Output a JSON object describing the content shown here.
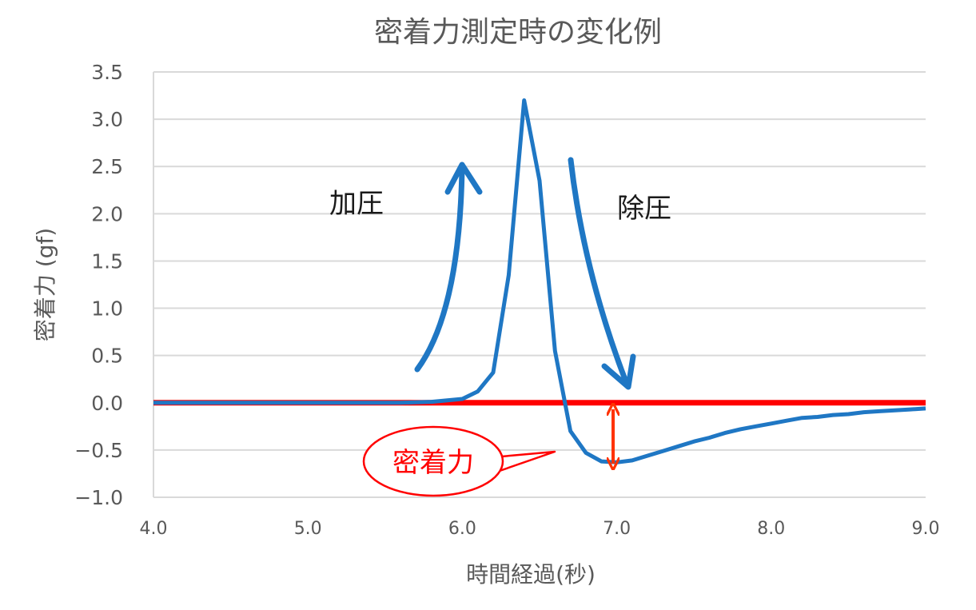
{
  "chart_data": {
    "type": "line",
    "title": "密着力測定時の変化例",
    "xlabel": "時間経過(秒)",
    "ylabel": "密着力 (gf)",
    "xlim": [
      4.0,
      9.0
    ],
    "ylim": [
      -1.0,
      3.5
    ],
    "x_ticks": [
      "4.0",
      "5.0",
      "6.0",
      "7.0",
      "8.0",
      "9.0"
    ],
    "y_ticks": [
      "3.5",
      "3.0",
      "2.5",
      "2.0",
      "1.5",
      "1.0",
      "0.5",
      "0.0",
      "−0.5",
      "−1.0"
    ],
    "grid": "horizontal",
    "series": [
      {
        "color": "#1f77c4",
        "x": [
          4.0,
          4.2,
          4.4,
          4.6,
          4.8,
          5.0,
          5.2,
          5.4,
          5.6,
          5.8,
          6.0,
          6.1,
          6.2,
          6.3,
          6.4,
          6.5,
          6.6,
          6.7,
          6.8,
          6.9,
          7.0,
          7.1,
          7.2,
          7.3,
          7.4,
          7.5,
          7.6,
          7.7,
          7.8,
          7.9,
          8.0,
          8.1,
          8.2,
          8.3,
          8.4,
          8.5,
          8.6,
          8.7,
          8.8,
          8.9,
          9.0
        ],
        "y": [
          0.0,
          0.0,
          0.0,
          0.0,
          0.0,
          0.0,
          0.0,
          0.0,
          0.0,
          0.01,
          0.04,
          0.12,
          0.32,
          1.35,
          3.2,
          2.35,
          0.55,
          -0.3,
          -0.53,
          -0.62,
          -0.63,
          -0.61,
          -0.56,
          -0.51,
          -0.46,
          -0.41,
          -0.37,
          -0.32,
          -0.28,
          -0.25,
          -0.22,
          -0.19,
          -0.16,
          -0.15,
          -0.13,
          -0.12,
          -0.1,
          -0.09,
          -0.08,
          -0.07,
          -0.06
        ]
      }
    ],
    "reference_line": {
      "y": 0.0,
      "color": "#ff0000"
    },
    "annotations": {
      "press_label": "加圧",
      "release_label": "除圧",
      "adhesion_callout": "密着力",
      "arrow_color": "#1f77c4",
      "callout_color": "#ff0000"
    }
  }
}
